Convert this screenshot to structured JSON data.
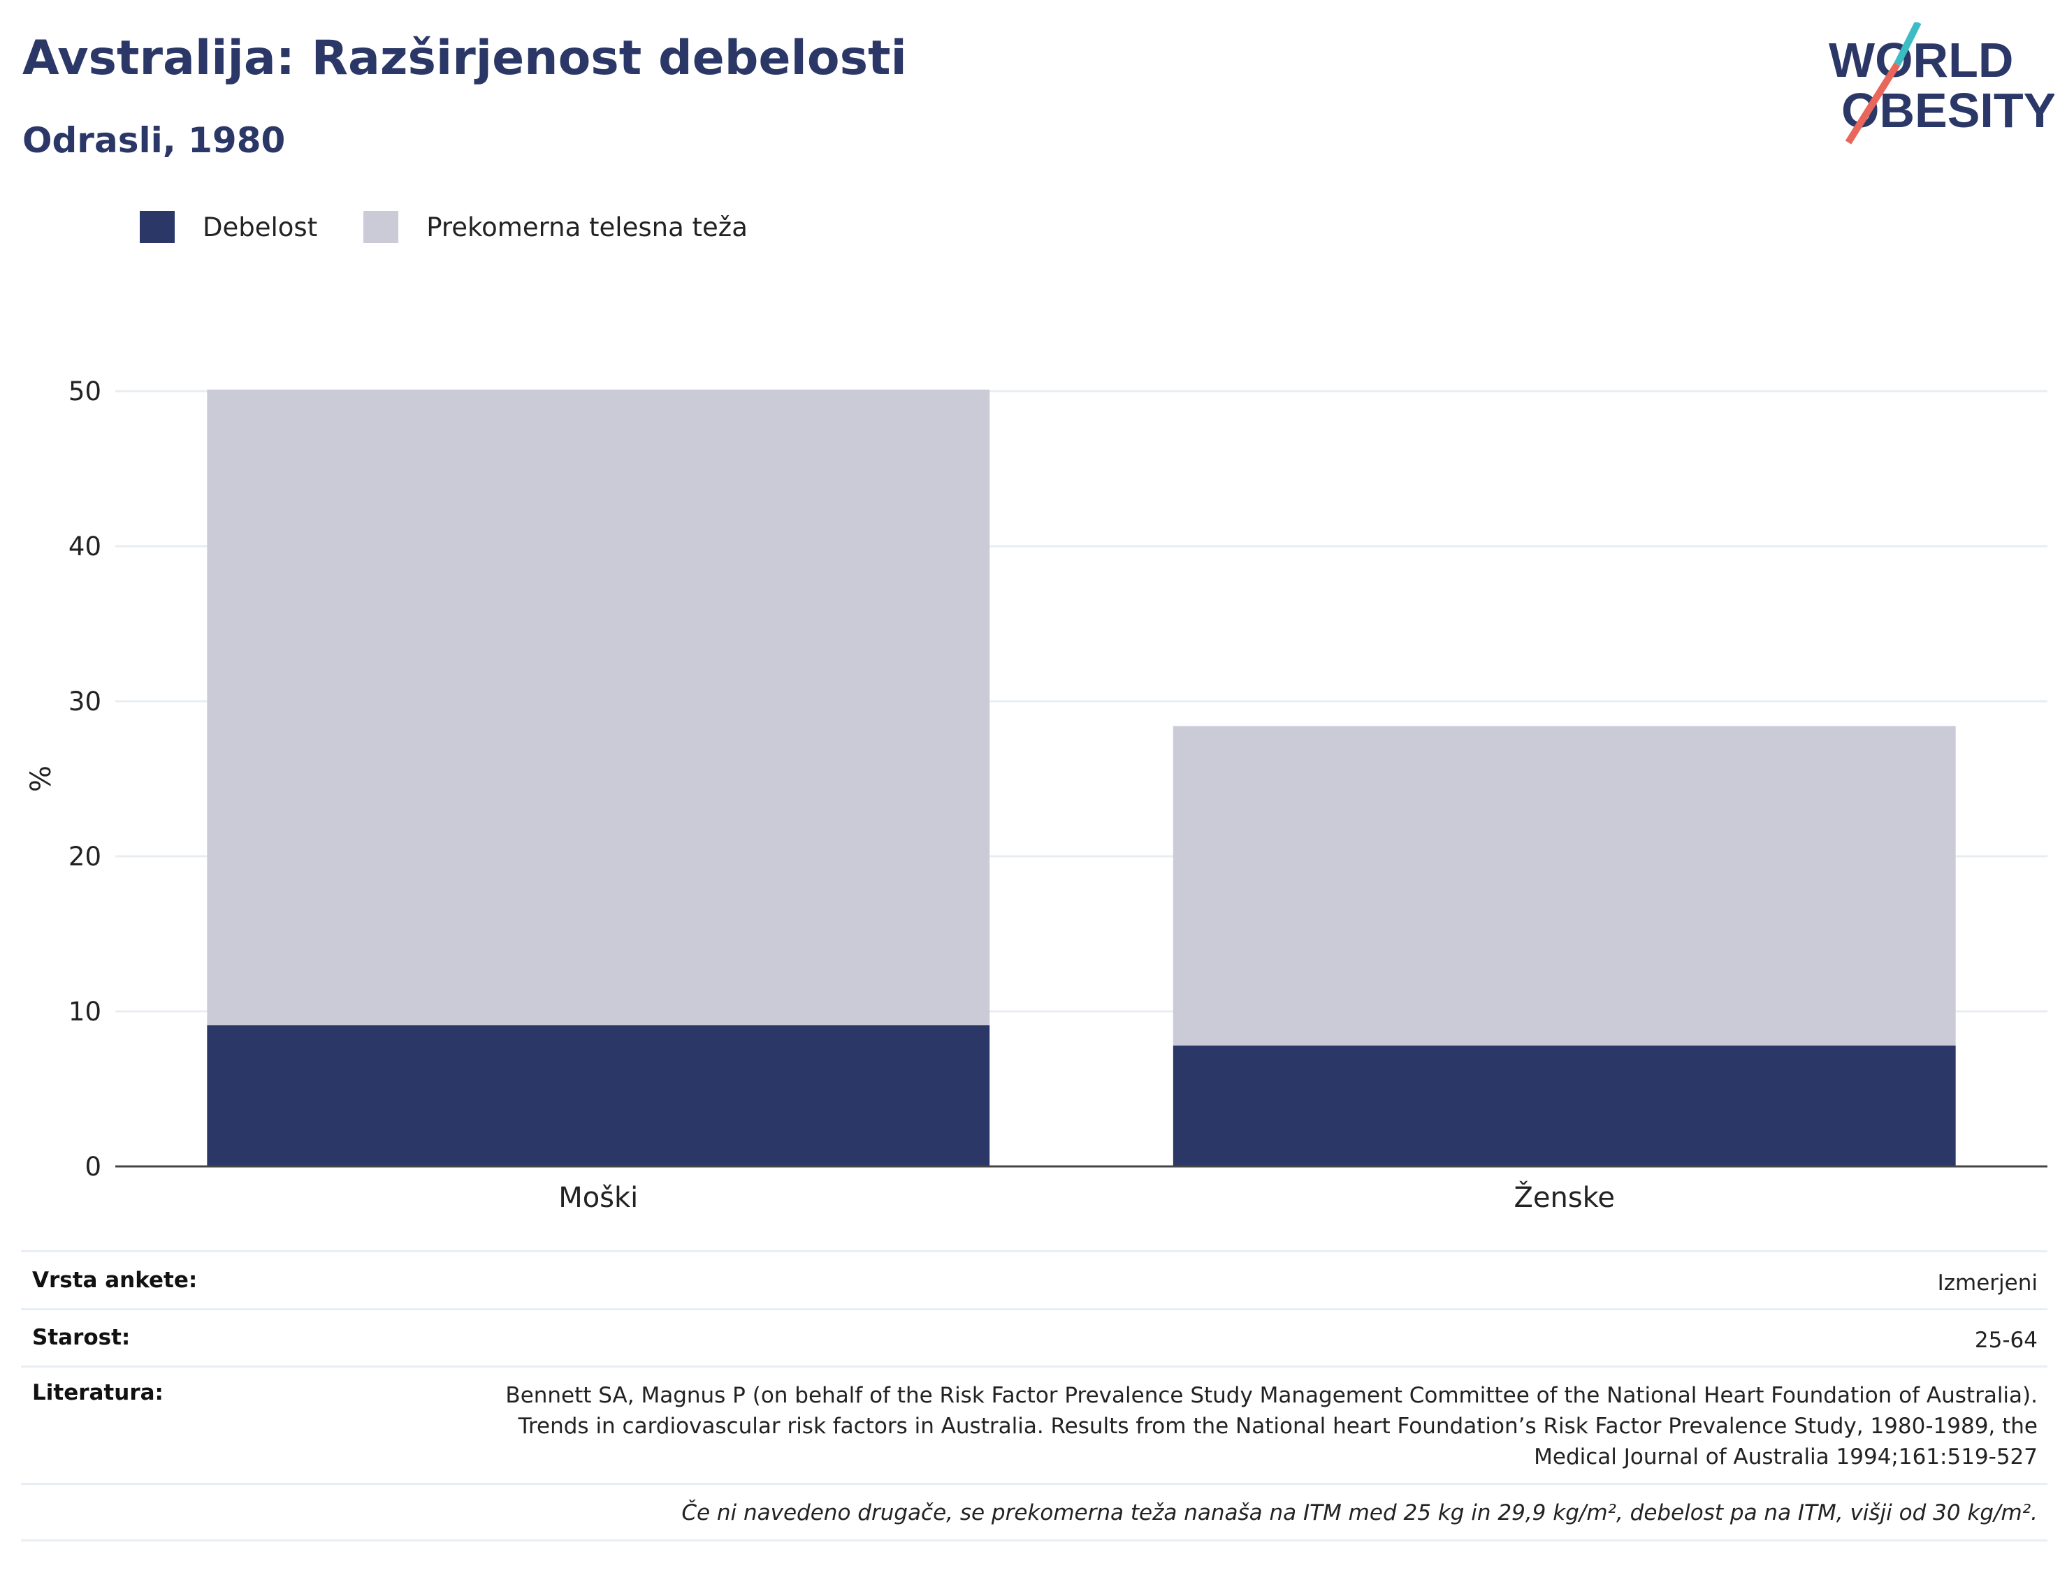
{
  "header": {
    "title": "Avstralija: Razširjenost debelosti",
    "subtitle": "Odrasli, 1980"
  },
  "logo": {
    "line1": "WORLD",
    "line2": "OBESITY",
    "colors": {
      "text": "#2b3766",
      "slash_top": "#3cbcc3",
      "slash_bottom": "#e8675a"
    }
  },
  "legend": [
    {
      "label": "Debelost",
      "color": "#2b3766"
    },
    {
      "label": "Prekomerna telesna teža",
      "color": "#cacbd7"
    }
  ],
  "chart_data": {
    "type": "bar",
    "stacked": true,
    "categories": [
      "Moški",
      "Ženske"
    ],
    "series": [
      {
        "name": "Debelost",
        "color": "#2b3766",
        "values": [
          9.1,
          7.8
        ]
      },
      {
        "name": "Prekomerna telesna teža",
        "color": "#cacbd7",
        "values": [
          41.0,
          20.6
        ]
      }
    ],
    "ylabel": "%",
    "xlabel": "",
    "ylim": [
      0,
      50
    ],
    "yticks": [
      0,
      10,
      20,
      30,
      40,
      50
    ],
    "grid": true,
    "legend_position": "top-left"
  },
  "info": {
    "survey_label": "Vrsta ankete:",
    "survey_value": "Izmerjeni",
    "age_label": "Starost:",
    "age_value": "25-64",
    "lit_label": "Literatura:",
    "lit_value": "Bennett SA, Magnus P (on behalf of the Risk Factor Prevalence Study Management Committee of the National Heart Foundation of Australia). Trends in cardiovascular risk factors in Australia. Results from the National heart Foundation’s Risk Factor Prevalence Study, 1980-1989, the Medical Journal of Australia 1994;161:519-527",
    "note": "Če ni navedeno drugače, se prekomerna teža nanaša na ITM med 25 kg in 29,9 kg/m², debelost pa na ITM, višji od 30 kg/m²."
  }
}
